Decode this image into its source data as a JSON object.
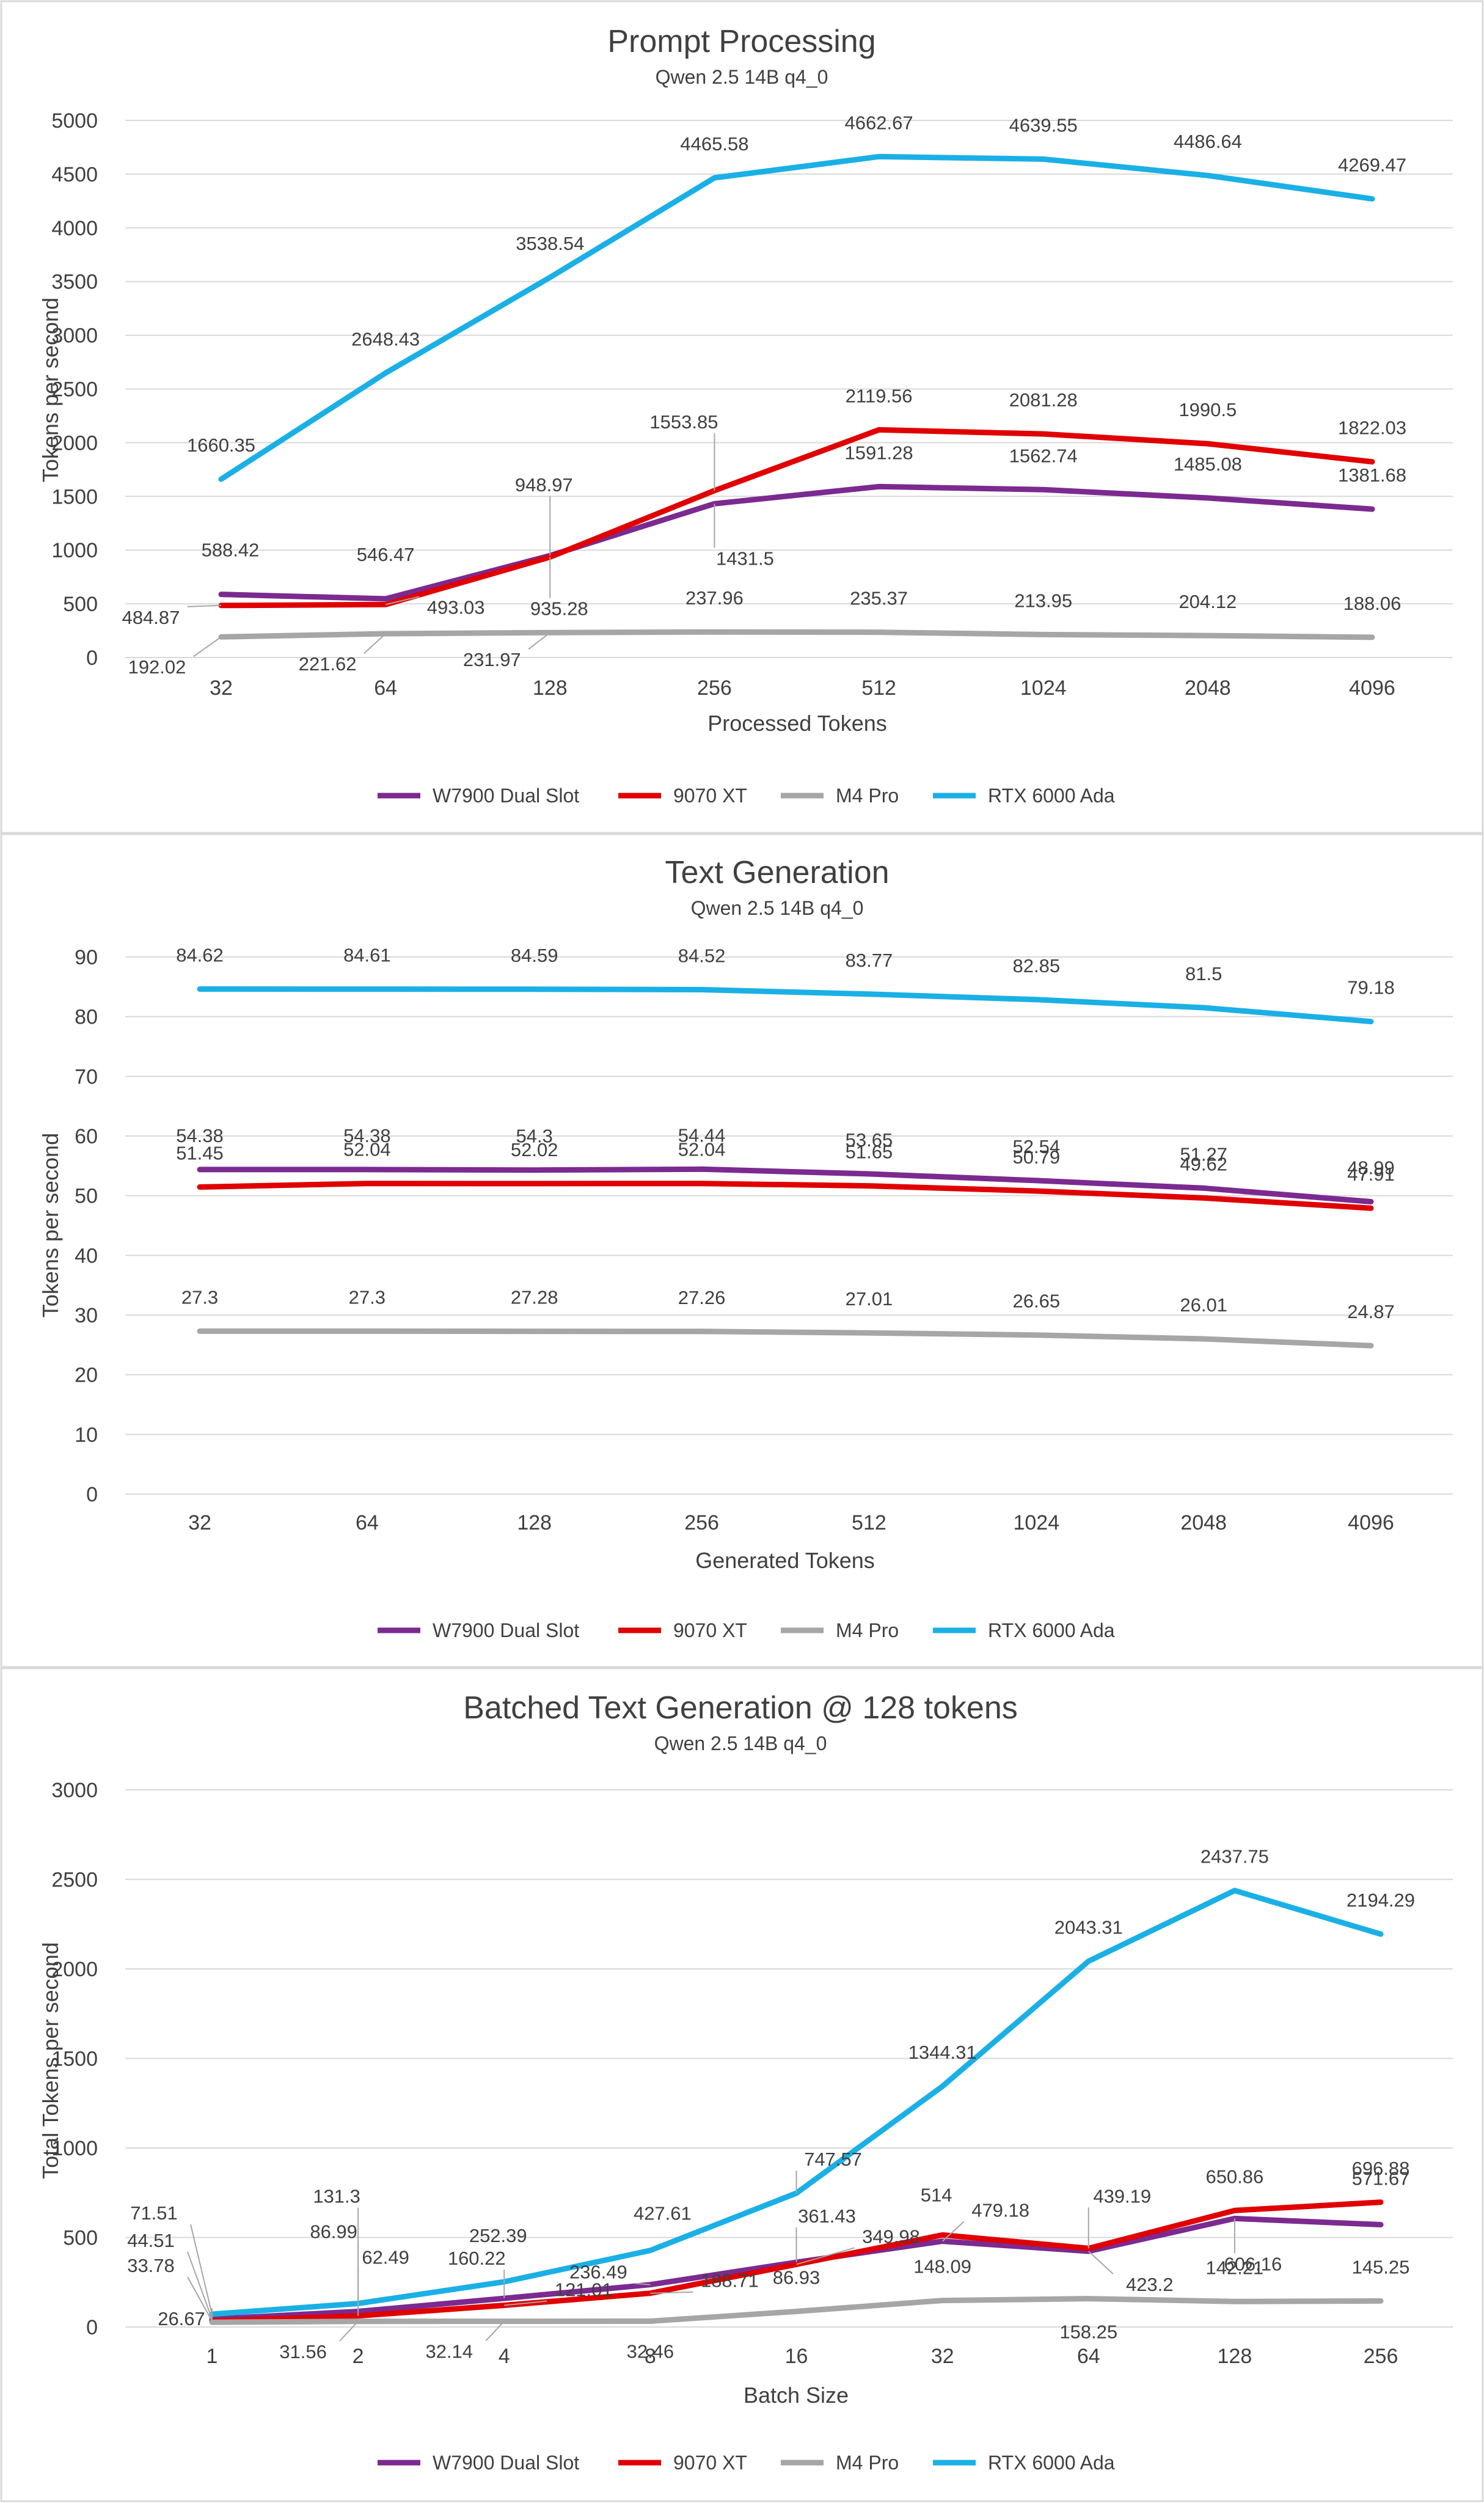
{
  "series_meta": [
    {
      "name": "W7900 Dual Slot",
      "color": "#7b2a90"
    },
    {
      "name": "9070 XT",
      "color": "#e00000"
    },
    {
      "name": "M4 Pro",
      "color": "#a6a6a6"
    },
    {
      "name": "RTX 6000 Ada",
      "color": "#1ab0e6"
    }
  ],
  "chart_data": [
    {
      "type": "line",
      "title": "Prompt Processing",
      "subtitle": "Qwen 2.5 14B q4_0",
      "xlabel": "Processed Tokens",
      "ylabel": "Tokens per second",
      "ylim": [
        0,
        5000
      ],
      "yticks": [
        "0",
        "500",
        "1000",
        "1500",
        "2000",
        "2500",
        "3000",
        "3500",
        "4000",
        "4500",
        "5000"
      ],
      "categories": [
        "32",
        "64",
        "128",
        "256",
        "512",
        "1024",
        "2048",
        "4096"
      ],
      "grid": true,
      "legend": "bottom",
      "series": [
        {
          "name": "W7900 Dual Slot",
          "values": [
            588.42,
            546.47,
            948.97,
            1431.5,
            1591.28,
            1562.74,
            1485.08,
            1381.68
          ]
        },
        {
          "name": "9070 XT",
          "values": [
            484.87,
            493.03,
            935.28,
            1553.85,
            2119.56,
            2081.28,
            1990.5,
            1822.03
          ]
        },
        {
          "name": "M4 Pro",
          "values": [
            192.02,
            221.62,
            231.97,
            237.96,
            235.37,
            213.95,
            204.12,
            188.06
          ]
        },
        {
          "name": "RTX 6000 Ada",
          "values": [
            1660.35,
            2648.43,
            3538.54,
            4465.58,
            4662.67,
            4639.55,
            4486.64,
            4269.47
          ]
        }
      ],
      "labels": [
        [
          {
            "text": "588.42",
            "dx": 15,
            "dy": -62
          },
          {
            "text": "546.47",
            "dx": 0,
            "dy": -62
          },
          {
            "text": "948.97",
            "dx": -10,
            "dy": -105
          },
          {
            "text": "1431.5",
            "dx": 50,
            "dy": 100
          },
          {
            "text": "1591.28",
            "dx": 0,
            "dy": -45
          },
          {
            "text": "1562.74",
            "dx": 0,
            "dy": -45
          },
          {
            "text": "1485.08",
            "dx": 0,
            "dy": -45
          },
          {
            "text": "1381.68",
            "dx": 0,
            "dy": -45
          }
        ],
        [
          {
            "text": "484.87",
            "dx": -115,
            "dy": 30
          },
          {
            "text": "493.03",
            "dx": 115,
            "dy": 15
          },
          {
            "text": "935.28",
            "dx": 15,
            "dy": 95
          },
          {
            "text": "1553.85",
            "dx": -50,
            "dy": -102
          },
          {
            "text": "2119.56",
            "dx": 0,
            "dy": -45
          },
          {
            "text": "2081.28",
            "dx": 0,
            "dy": -45
          },
          {
            "text": "1990.5",
            "dx": 0,
            "dy": -45
          },
          {
            "text": "1822.03",
            "dx": 0,
            "dy": -45
          }
        ],
        [
          {
            "text": "192.02",
            "dx": -105,
            "dy": 60
          },
          {
            "text": "221.62",
            "dx": -95,
            "dy": 60
          },
          {
            "text": "231.97",
            "dx": -95,
            "dy": 55
          },
          {
            "text": "237.96",
            "dx": 0,
            "dy": -45
          },
          {
            "text": "235.37",
            "dx": 0,
            "dy": -45
          },
          {
            "text": "213.95",
            "dx": 0,
            "dy": -45
          },
          {
            "text": "204.12",
            "dx": 0,
            "dy": -45
          },
          {
            "text": "188.06",
            "dx": 0,
            "dy": -45
          }
        ],
        [
          {
            "text": "1660.35",
            "dx": 0,
            "dy": -45
          },
          {
            "text": "2648.43",
            "dx": 0,
            "dy": -45
          },
          {
            "text": "3538.54",
            "dx": 0,
            "dy": -45
          },
          {
            "text": "4465.58",
            "dx": 0,
            "dy": -45
          },
          {
            "text": "4662.67",
            "dx": 0,
            "dy": -45
          },
          {
            "text": "4639.55",
            "dx": 0,
            "dy": -45
          },
          {
            "text": "4486.64",
            "dx": 0,
            "dy": -45
          },
          {
            "text": "4269.47",
            "dx": 0,
            "dy": -45
          }
        ]
      ]
    },
    {
      "type": "line",
      "title": "Text Generation",
      "subtitle": "Qwen 2.5 14B q4_0",
      "xlabel": "Generated Tokens",
      "ylabel": "Tokens per second",
      "ylim": [
        0,
        90
      ],
      "yticks": [
        "0",
        "10",
        "20",
        "30",
        "40",
        "50",
        "60",
        "70",
        "80",
        "90"
      ],
      "categories": [
        "32",
        "64",
        "128",
        "256",
        "512",
        "1024",
        "2048",
        "4096"
      ],
      "grid": true,
      "legend": "bottom",
      "series": [
        {
          "name": "W7900 Dual Slot",
          "values": [
            54.38,
            54.38,
            54.3,
            54.44,
            53.65,
            52.54,
            51.27,
            48.99
          ]
        },
        {
          "name": "9070 XT",
          "values": [
            51.45,
            52.04,
            52.02,
            52.04,
            51.65,
            50.79,
            49.62,
            47.91
          ]
        },
        {
          "name": "M4 Pro",
          "values": [
            27.3,
            27.3,
            27.28,
            27.26,
            27.01,
            26.65,
            26.01,
            24.87
          ]
        },
        {
          "name": "RTX 6000 Ada",
          "values": [
            84.62,
            84.61,
            84.59,
            84.52,
            83.77,
            82.85,
            81.5,
            79.18
          ]
        }
      ],
      "labels": [
        [
          {
            "text": "54.38",
            "dx": 0,
            "dy": -45
          },
          {
            "text": "54.38",
            "dx": 0,
            "dy": -45
          },
          {
            "text": "54.3",
            "dx": 0,
            "dy": -45
          },
          {
            "text": "54.44",
            "dx": 0,
            "dy": -45
          },
          {
            "text": "53.65",
            "dx": 0,
            "dy": -45
          },
          {
            "text": "52.54",
            "dx": 0,
            "dy": -45
          },
          {
            "text": "51.27",
            "dx": 0,
            "dy": -45
          },
          {
            "text": "48.99",
            "dx": 0,
            "dy": -45
          }
        ],
        [
          {
            "text": "51.45",
            "dx": 0,
            "dy": -45
          },
          {
            "text": "52.04",
            "dx": 0,
            "dy": -45
          },
          {
            "text": "52.02",
            "dx": 0,
            "dy": -45
          },
          {
            "text": "52.04",
            "dx": 0,
            "dy": -45
          },
          {
            "text": "51.65",
            "dx": 0,
            "dy": -45
          },
          {
            "text": "50.79",
            "dx": 0,
            "dy": -45
          },
          {
            "text": "49.62",
            "dx": 0,
            "dy": -45
          },
          {
            "text": "47.91",
            "dx": 0,
            "dy": -45
          }
        ],
        [
          {
            "text": "27.3",
            "dx": 0,
            "dy": -45
          },
          {
            "text": "27.3",
            "dx": 0,
            "dy": -45
          },
          {
            "text": "27.28",
            "dx": 0,
            "dy": -45
          },
          {
            "text": "27.26",
            "dx": 0,
            "dy": -45
          },
          {
            "text": "27.01",
            "dx": 0,
            "dy": -45
          },
          {
            "text": "26.65",
            "dx": 0,
            "dy": -45
          },
          {
            "text": "26.01",
            "dx": 0,
            "dy": -45
          },
          {
            "text": "24.87",
            "dx": 0,
            "dy": -45
          }
        ],
        [
          {
            "text": "84.62",
            "dx": 0,
            "dy": -45
          },
          {
            "text": "84.61",
            "dx": 0,
            "dy": -45
          },
          {
            "text": "84.59",
            "dx": 0,
            "dy": -45
          },
          {
            "text": "84.52",
            "dx": 0,
            "dy": -45
          },
          {
            "text": "83.77",
            "dx": 0,
            "dy": -45
          },
          {
            "text": "82.85",
            "dx": 0,
            "dy": -45
          },
          {
            "text": "81.5",
            "dx": 0,
            "dy": -45
          },
          {
            "text": "79.18",
            "dx": 0,
            "dy": -45
          }
        ]
      ]
    },
    {
      "type": "line",
      "title": "Batched Text Generation @ 128 tokens",
      "subtitle": "Qwen 2.5 14B q4_0",
      "xlabel": "Batch Size",
      "ylabel": "Total Tokens per second",
      "ylim": [
        0,
        3000
      ],
      "yticks": [
        "0",
        "500",
        "1000",
        "1500",
        "2000",
        "2500",
        "3000"
      ],
      "categories": [
        "1",
        "2",
        "4",
        "8",
        "16",
        "32",
        "64",
        "128",
        "256"
      ],
      "grid": true,
      "legend": "bottom",
      "series": [
        {
          "name": "W7900 Dual Slot",
          "values": [
            44.51,
            86.99,
            160.22,
            236.49,
            361.43,
            479.18,
            423.2,
            606.16,
            571.67
          ]
        },
        {
          "name": "9070 XT",
          "values": [
            33.78,
            62.49,
            121.01,
            188.71,
            349.98,
            514,
            439.19,
            650.86,
            696.88
          ]
        },
        {
          "name": "M4 Pro",
          "values": [
            26.67,
            31.56,
            32.14,
            32.46,
            86.93,
            148.09,
            158.25,
            142.21,
            145.25
          ]
        },
        {
          "name": "RTX 6000 Ada",
          "values": [
            71.51,
            131.3,
            252.39,
            427.61,
            747.57,
            1344.31,
            2043.31,
            2437.75,
            2194.29
          ]
        }
      ],
      "labels": [
        [
          {
            "text": "44.51",
            "dx": -100,
            "dy": -118
          },
          {
            "text": "86.99",
            "dx": -40,
            "dy": -120
          },
          {
            "text": "160.22",
            "dx": -45,
            "dy": -55
          },
          {
            "text": "236.49",
            "dx": -85,
            "dy": -10
          },
          {
            "text": "361.43",
            "dx": 50,
            "dy": -65
          },
          {
            "text": "479.18",
            "dx": 95,
            "dy": -40
          },
          {
            "text": "423.2",
            "dx": 100,
            "dy": 65
          },
          {
            "text": "606.16",
            "dx": 30,
            "dy": 85
          },
          {
            "text": "571.67",
            "dx": 0,
            "dy": -65
          }
        ],
        [
          {
            "text": "33.78",
            "dx": -100,
            "dy": -80
          },
          {
            "text": "62.49",
            "dx": 45,
            "dy": -85
          },
          {
            "text": "121.01",
            "dx": 130,
            "dy": -15
          },
          {
            "text": "188.71",
            "dx": 130,
            "dy": -10
          },
          {
            "text": "349.98",
            "dx": 155,
            "dy": -35
          },
          {
            "text": "514",
            "dx": -10,
            "dy": -55
          },
          {
            "text": "439.19",
            "dx": 55,
            "dy": -75
          },
          {
            "text": "650.86",
            "dx": 0,
            "dy": -45
          },
          {
            "text": "696.88",
            "dx": 0,
            "dy": -45
          }
        ],
        [
          {
            "text": "26.67",
            "dx": -50,
            "dy": 5
          },
          {
            "text": "31.56",
            "dx": -90,
            "dy": 60
          },
          {
            "text": "32.14",
            "dx": -90,
            "dy": 60
          },
          {
            "text": "32.46",
            "dx": 0,
            "dy": 60
          },
          {
            "text": "86.93",
            "dx": 0,
            "dy": -45
          },
          {
            "text": "148.09",
            "dx": 0,
            "dy": -45
          },
          {
            "text": "158.25",
            "dx": 0,
            "dy": 65
          },
          {
            "text": "142.21",
            "dx": 0,
            "dy": -45
          },
          {
            "text": "145.25",
            "dx": 0,
            "dy": -45
          }
        ],
        [
          {
            "text": "71.51",
            "dx": -95,
            "dy": -155
          },
          {
            "text": "131.3",
            "dx": -35,
            "dy": -165
          },
          {
            "text": "252.39",
            "dx": -10,
            "dy": -65
          },
          {
            "text": "427.61",
            "dx": 20,
            "dy": -50
          },
          {
            "text": "747.57",
            "dx": 60,
            "dy": -45
          },
          {
            "text": "1344.31",
            "dx": 0,
            "dy": -45
          },
          {
            "text": "2043.31",
            "dx": 0,
            "dy": -45
          },
          {
            "text": "2437.75",
            "dx": 0,
            "dy": -45
          },
          {
            "text": "2194.29",
            "dx": 0,
            "dy": -45
          }
        ]
      ]
    }
  ]
}
